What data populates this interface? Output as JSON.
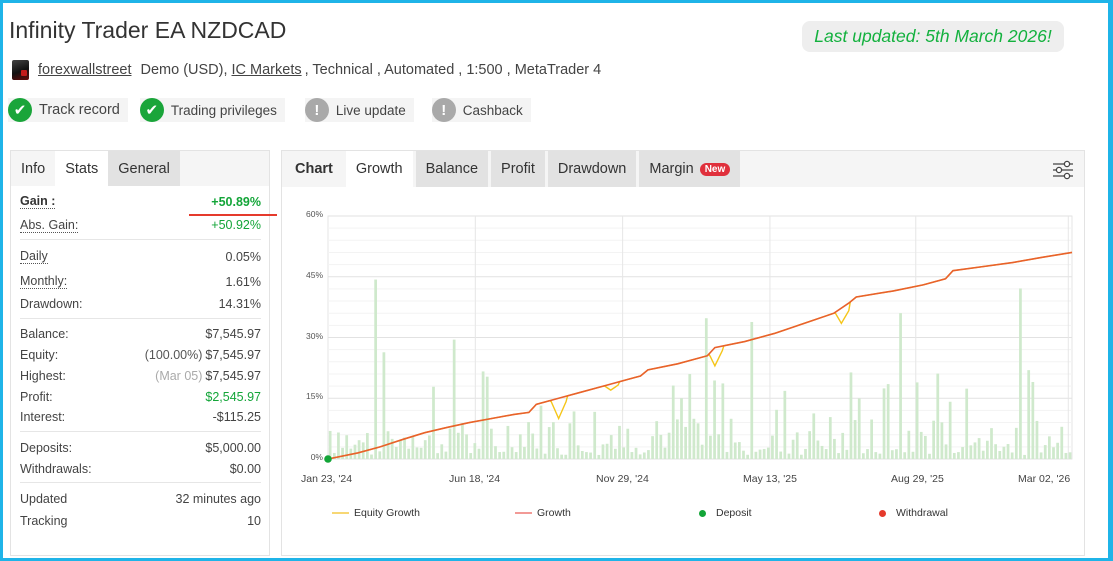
{
  "header": {
    "title": "Infinity Trader EA NZDCAD",
    "last_updated": "Last updated: 5th March 2026!",
    "author": "forexwallstreet",
    "account_type": "Demo (USD),",
    "broker": "IC Markets",
    "details": ", Technical , Automated , 1:500 , MetaTrader 4"
  },
  "badges": [
    {
      "label": "Track record",
      "status": "verified",
      "icon": "check-icon"
    },
    {
      "label": "Trading privileges",
      "status": "verified",
      "icon": "check-icon"
    },
    {
      "label": "Live update",
      "status": "warning",
      "icon": "exclamation-icon"
    },
    {
      "label": "Cashback",
      "status": "warning",
      "icon": "exclamation-icon"
    }
  ],
  "left_panel": {
    "tabs": [
      "Info",
      "Stats",
      "General"
    ],
    "active_tab": "Stats",
    "stats": {
      "gain": {
        "label": "Gain :",
        "value": "+50.89%"
      },
      "abs_gain": {
        "label": "Abs. Gain:",
        "value": "+50.92%"
      },
      "daily": {
        "label": "Daily",
        "value": "0.05%"
      },
      "monthly": {
        "label": "Monthly:",
        "value": "1.61%"
      },
      "drawdown": {
        "label": "Drawdown:",
        "value": "14.31%"
      },
      "balance": {
        "label": "Balance:",
        "value": "$7,545.97"
      },
      "equity": {
        "label": "Equity:",
        "note": "(100.00%)",
        "value": "$7,545.97"
      },
      "highest": {
        "label": "Highest:",
        "note": "(Mar 05)",
        "value": "$7,545.97"
      },
      "profit": {
        "label": "Profit:",
        "value": "$2,545.97"
      },
      "interest": {
        "label": "Interest:",
        "value": "-$115.25"
      },
      "deposits": {
        "label": "Deposits:",
        "value": "$5,000.00"
      },
      "withdrawals": {
        "label": "Withdrawals:",
        "value": "$0.00"
      },
      "updated": {
        "label": "Updated",
        "value": "32 minutes ago"
      },
      "tracking": {
        "label": "Tracking",
        "value": "10"
      }
    }
  },
  "right_panel": {
    "header_label": "Chart",
    "tabs": [
      "Growth",
      "Balance",
      "Profit",
      "Drawdown",
      "Margin"
    ],
    "active_tab": "Growth",
    "new_badge": "New",
    "settings_icon": "sliders-icon"
  },
  "colors": {
    "growth": "#e8612c",
    "equity_growth": "#f5c518",
    "deposit": "#13a538",
    "withdrawal": "#e53a2c",
    "bars": "#cfe9cc",
    "positive": "#13a538",
    "frame": "#1fb4e8"
  },
  "chart_data": {
    "type": "line",
    "title": "Growth",
    "xlabel": "",
    "ylabel": "",
    "ylim": [
      0,
      60
    ],
    "y_ticks": [
      "0%",
      "15%",
      "30%",
      "45%",
      "60%"
    ],
    "x_ticks": [
      "Jan 23, '24",
      "Jun 18, '24",
      "Nov 29, '24",
      "May 13, '25",
      "Aug 29, '25",
      "Mar 02, '26"
    ],
    "legend": [
      "Equity Growth",
      "Growth",
      "Deposit",
      "Withdrawal"
    ],
    "legend_position": "bottom",
    "grid": true,
    "series": [
      {
        "name": "Growth",
        "x_frac": [
          0,
          0.04,
          0.07,
          0.1,
          0.13,
          0.16,
          0.19,
          0.22,
          0.25,
          0.27,
          0.28,
          0.31,
          0.34,
          0.37,
          0.4,
          0.42,
          0.43,
          0.47,
          0.51,
          0.52,
          0.56,
          0.6,
          0.64,
          0.68,
          0.7,
          0.71,
          0.76,
          0.8,
          0.83,
          0.84,
          0.88,
          0.92,
          0.96,
          1.0
        ],
        "values": [
          0,
          1.5,
          3,
          4.8,
          6.5,
          7.8,
          9,
          10,
          11,
          11.5,
          13.5,
          15,
          16.5,
          18,
          19.5,
          20.5,
          22,
          23.5,
          25.5,
          27.5,
          29,
          31,
          33.5,
          36,
          38.5,
          40,
          41.5,
          43,
          44.5,
          46.5,
          47.5,
          48.5,
          49.8,
          51
        ]
      },
      {
        "name": "Equity Growth",
        "note": "tracks Growth with dips",
        "dips": [
          {
            "x_frac": 0.31,
            "value": 10
          },
          {
            "x_frac": 0.38,
            "value": 17
          },
          {
            "x_frac": 0.52,
            "value": 23
          },
          {
            "x_frac": 0.69,
            "value": 33.5
          }
        ]
      },
      {
        "name": "Deposit",
        "points": [
          {
            "x_frac": 0,
            "value": 0
          }
        ]
      }
    ],
    "bars": {
      "name": "Daily activity (background)",
      "count": 180,
      "max_value_pct": 45
    }
  }
}
